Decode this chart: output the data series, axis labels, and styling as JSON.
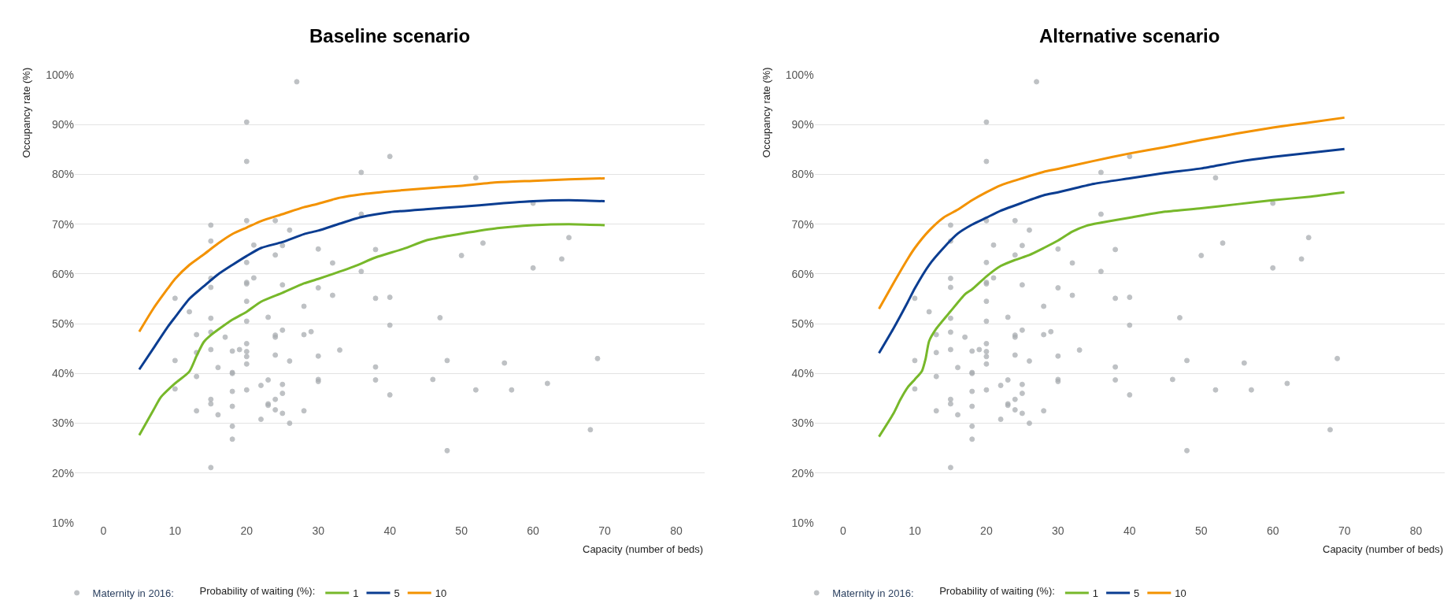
{
  "chart_data": [
    {
      "type": "line",
      "title": "Baseline scenario",
      "xlabel": "Capacity (number of beds)",
      "ylabel": "Occupancy rate (%)",
      "legend_title": "Probability of waiting (%):",
      "legend": "bottom",
      "grid": "y",
      "xlim": [
        -4,
        84
      ],
      "ylim": [
        10,
        100
      ],
      "xticks": [
        0,
        10,
        20,
        30,
        40,
        50,
        60,
        70,
        80
      ],
      "yticks": [
        {
          "value": 10,
          "label": "10%"
        },
        {
          "value": 20,
          "label": "20%"
        },
        {
          "value": 30,
          "label": "30%"
        },
        {
          "value": 40,
          "label": "40%"
        },
        {
          "value": 50,
          "label": "50%"
        },
        {
          "value": 60,
          "label": "60%"
        },
        {
          "value": 70,
          "label": "70%"
        },
        {
          "value": 80,
          "label": "80%"
        },
        {
          "value": 90,
          "label": "90%"
        },
        {
          "value": 100,
          "label": "100%"
        }
      ],
      "series": [
        {
          "name": "Maternity in 2016:",
          "type": "scatter",
          "marker": "circle",
          "color": "#a9adb1",
          "x": [
            27,
            20,
            20,
            40,
            36,
            36,
            15,
            20,
            24,
            26,
            15,
            21,
            25,
            30,
            38,
            24,
            20,
            32,
            36,
            15,
            20,
            20,
            21,
            15,
            25,
            30,
            32,
            10,
            38,
            40,
            20,
            12,
            28,
            23,
            15,
            20,
            40,
            13,
            15,
            17,
            24,
            24,
            25,
            28,
            29,
            20,
            15,
            18,
            19,
            20,
            33,
            13,
            20,
            24,
            26,
            30,
            10,
            20,
            16,
            38,
            18,
            18,
            13,
            23,
            30,
            30,
            38,
            46,
            22,
            25,
            10,
            18,
            20,
            25,
            40,
            15,
            15,
            23,
            23,
            24,
            13,
            18,
            24,
            25,
            28,
            16,
            22,
            26,
            18,
            18,
            15,
            52,
            60,
            65,
            53,
            50,
            64,
            60,
            47,
            48,
            69,
            56,
            52,
            57,
            62,
            68,
            48
          ],
          "values": [
            98.6,
            90.5,
            82.6,
            83.6,
            80.4,
            72.0,
            69.8,
            70.7,
            70.7,
            68.8,
            66.6,
            65.8,
            65.7,
            65.0,
            64.9,
            63.8,
            62.3,
            62.2,
            60.5,
            59.1,
            58.3,
            58.0,
            59.2,
            57.3,
            57.8,
            57.2,
            55.7,
            55.1,
            55.1,
            55.3,
            54.5,
            52.4,
            53.5,
            51.3,
            51.1,
            50.5,
            49.7,
            47.8,
            48.3,
            47.3,
            47.7,
            47.3,
            48.7,
            47.8,
            48.4,
            46.0,
            44.8,
            44.5,
            44.8,
            44.4,
            44.7,
            44.2,
            43.4,
            43.7,
            42.5,
            43.5,
            42.6,
            41.9,
            41.2,
            41.3,
            40.2,
            40.0,
            39.4,
            38.7,
            38.8,
            38.4,
            38.7,
            38.8,
            37.6,
            37.8,
            36.9,
            36.4,
            36.7,
            36.0,
            35.7,
            34.8,
            33.9,
            33.9,
            33.6,
            34.8,
            32.5,
            33.4,
            32.7,
            32.0,
            32.5,
            31.7,
            30.8,
            30.0,
            29.4,
            26.8,
            21.1,
            79.3,
            74.2,
            67.3,
            66.2,
            63.7,
            63.0,
            61.2,
            51.2,
            42.6,
            43.0,
            42.1,
            36.7,
            36.7,
            38.0,
            28.7,
            24.5
          ]
        },
        {
          "name": "1",
          "color": "#77b82a",
          "x": [
            5,
            7,
            8,
            10,
            12,
            13,
            14,
            15,
            18,
            20,
            22,
            25,
            28,
            30,
            35,
            38,
            42,
            45,
            48,
            50,
            55,
            60,
            65,
            70
          ],
          "values": [
            27.6,
            32.7,
            35.2,
            38.0,
            40.4,
            43.5,
            46.3,
            47.7,
            50.8,
            52.4,
            54.4,
            56.2,
            58.1,
            59.0,
            61.5,
            63.3,
            65.1,
            66.7,
            67.6,
            68.1,
            69.2,
            69.8,
            70.0,
            69.8
          ]
        },
        {
          "name": "5",
          "color": "#0b3d91",
          "x": [
            5,
            7,
            9,
            10,
            12,
            14,
            16,
            18,
            20,
            22,
            25,
            28,
            30,
            33,
            36,
            40,
            45,
            50,
            55,
            60,
            65,
            70
          ],
          "values": [
            40.8,
            45.1,
            49.4,
            51.3,
            55.0,
            57.5,
            59.9,
            61.8,
            63.6,
            65.2,
            66.4,
            68.0,
            68.7,
            70.1,
            71.4,
            72.4,
            73.0,
            73.5,
            74.1,
            74.6,
            74.8,
            74.6
          ]
        },
        {
          "name": "10",
          "color": "#f39200",
          "x": [
            5,
            7,
            9,
            10,
            12,
            14,
            16,
            18,
            20,
            22,
            25,
            28,
            30,
            33,
            36,
            40,
            45,
            50,
            55,
            60,
            65,
            70
          ],
          "values": [
            48.4,
            53.1,
            57.1,
            59.0,
            61.8,
            63.9,
            66.1,
            68.0,
            69.3,
            70.6,
            72.0,
            73.4,
            74.1,
            75.3,
            76.0,
            76.6,
            77.2,
            77.7,
            78.4,
            78.7,
            79.0,
            79.2
          ]
        }
      ]
    },
    {
      "type": "line",
      "title": "Alternative scenario",
      "xlabel": "Capacity (number of beds)",
      "ylabel": "Occupancy rate (%)",
      "legend_title": "Probability of waiting (%):",
      "legend": "bottom",
      "grid": "y",
      "xlim": [
        -4,
        84
      ],
      "ylim": [
        10,
        100
      ],
      "xticks": [
        0,
        10,
        20,
        30,
        40,
        50,
        60,
        70,
        80
      ],
      "yticks": [
        {
          "value": 10,
          "label": "10%"
        },
        {
          "value": 20,
          "label": "20%"
        },
        {
          "value": 30,
          "label": "30%"
        },
        {
          "value": 40,
          "label": "40%"
        },
        {
          "value": 50,
          "label": "50%"
        },
        {
          "value": 60,
          "label": "60%"
        },
        {
          "value": 70,
          "label": "70%"
        },
        {
          "value": 80,
          "label": "80%"
        },
        {
          "value": 90,
          "label": "90%"
        },
        {
          "value": 100,
          "label": "100%"
        }
      ],
      "series": [
        {
          "name": "Maternity in 2016:",
          "type": "scatter",
          "marker": "circle",
          "color": "#a9adb1",
          "x": [
            27,
            20,
            20,
            40,
            36,
            36,
            15,
            20,
            24,
            26,
            15,
            21,
            25,
            30,
            38,
            24,
            20,
            32,
            36,
            15,
            20,
            20,
            21,
            15,
            25,
            30,
            32,
            10,
            38,
            40,
            20,
            12,
            28,
            23,
            15,
            20,
            40,
            13,
            15,
            17,
            24,
            24,
            25,
            28,
            29,
            20,
            15,
            18,
            19,
            20,
            33,
            13,
            20,
            24,
            26,
            30,
            10,
            20,
            16,
            38,
            18,
            18,
            13,
            23,
            30,
            30,
            38,
            46,
            22,
            25,
            10,
            18,
            20,
            25,
            40,
            15,
            15,
            23,
            23,
            24,
            13,
            18,
            24,
            25,
            28,
            16,
            22,
            26,
            18,
            18,
            15,
            52,
            60,
            65,
            53,
            50,
            64,
            60,
            47,
            48,
            69,
            56,
            52,
            57,
            62,
            68,
            48
          ],
          "values": [
            98.6,
            90.5,
            82.6,
            83.6,
            80.4,
            72.0,
            69.8,
            70.7,
            70.7,
            68.8,
            66.6,
            65.8,
            65.7,
            65.0,
            64.9,
            63.8,
            62.3,
            62.2,
            60.5,
            59.1,
            58.3,
            58.0,
            59.2,
            57.3,
            57.8,
            57.2,
            55.7,
            55.1,
            55.1,
            55.3,
            54.5,
            52.4,
            53.5,
            51.3,
            51.1,
            50.5,
            49.7,
            47.8,
            48.3,
            47.3,
            47.7,
            47.3,
            48.7,
            47.8,
            48.4,
            46.0,
            44.8,
            44.5,
            44.8,
            44.4,
            44.7,
            44.2,
            43.4,
            43.7,
            42.5,
            43.5,
            42.6,
            41.9,
            41.2,
            41.3,
            40.2,
            40.0,
            39.4,
            38.7,
            38.8,
            38.4,
            38.7,
            38.8,
            37.6,
            37.8,
            36.9,
            36.4,
            36.7,
            36.0,
            35.7,
            34.8,
            33.9,
            33.9,
            33.6,
            34.8,
            32.5,
            33.4,
            32.7,
            32.0,
            32.5,
            31.7,
            30.8,
            30.0,
            29.4,
            26.8,
            21.1,
            79.3,
            74.2,
            67.3,
            66.2,
            63.7,
            63.0,
            61.2,
            51.2,
            42.6,
            43.0,
            42.1,
            36.7,
            36.7,
            38.0,
            28.7,
            24.5
          ]
        },
        {
          "name": "1",
          "color": "#77b82a",
          "x": [
            5,
            7,
            8,
            9,
            10,
            11,
            11.5,
            12,
            13,
            15,
            17,
            18,
            20,
            22,
            24,
            26,
            28,
            30,
            32,
            34,
            36,
            40,
            45,
            50,
            55,
            60,
            65,
            70
          ],
          "values": [
            27.3,
            31.9,
            34.8,
            37.2,
            38.8,
            40.5,
            42.9,
            46.5,
            49.0,
            52.5,
            55.9,
            56.9,
            59.5,
            61.6,
            62.8,
            63.8,
            65.2,
            66.7,
            68.5,
            69.7,
            70.3,
            71.3,
            72.5,
            73.2,
            74.0,
            74.8,
            75.5,
            76.4
          ]
        },
        {
          "name": "5",
          "color": "#0b3d91",
          "x": [
            5,
            7,
            9,
            10,
            12,
            14,
            16,
            18,
            20,
            22,
            25,
            28,
            30,
            35,
            40,
            45,
            50,
            55,
            60,
            65,
            70
          ],
          "values": [
            44.1,
            49.0,
            54.3,
            57.1,
            61.8,
            65.2,
            68.1,
            69.9,
            71.3,
            72.7,
            74.3,
            75.8,
            76.4,
            78.1,
            79.2,
            80.3,
            81.2,
            82.5,
            83.5,
            84.3,
            85.1
          ]
        },
        {
          "name": "10",
          "color": "#f39200",
          "x": [
            5,
            7,
            9,
            10,
            12,
            14,
            16,
            18,
            20,
            22,
            25,
            28,
            30,
            35,
            40,
            45,
            50,
            55,
            60,
            65,
            70
          ],
          "values": [
            53.0,
            58.1,
            63.0,
            65.2,
            68.7,
            71.3,
            72.9,
            74.8,
            76.4,
            77.8,
            79.2,
            80.5,
            81.1,
            82.7,
            84.2,
            85.5,
            86.9,
            88.2,
            89.4,
            90.4,
            91.4
          ]
        }
      ]
    }
  ]
}
